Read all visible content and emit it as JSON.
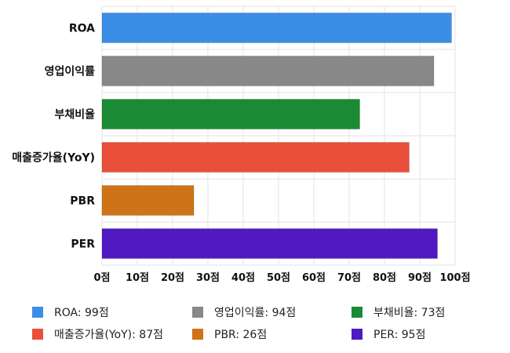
{
  "chart_data": {
    "type": "bar",
    "orientation": "horizontal",
    "categories": [
      "ROA",
      "영업이익률",
      "부채비율",
      "매출증가율(YoY)",
      "PBR",
      "PER"
    ],
    "values": [
      99,
      94,
      73,
      87,
      26,
      95
    ],
    "colors": [
      "#3b8ee6",
      "#888888",
      "#1a8a35",
      "#e94f3a",
      "#cf7318",
      "#5019c2"
    ],
    "xlim": [
      0,
      100
    ],
    "x_ticks": [
      0,
      10,
      20,
      30,
      40,
      50,
      60,
      70,
      80,
      90,
      100
    ],
    "tick_suffix": "점",
    "grid": true,
    "legend_position": "bottom",
    "legend": [
      {
        "label": "ROA: 99점",
        "color": "#3b8ee6"
      },
      {
        "label": "영업이익률: 94점",
        "color": "#888888"
      },
      {
        "label": "부채비율: 73점",
        "color": "#1a8a35"
      },
      {
        "label": "매출증가율(YoY): 87점",
        "color": "#e94f3a"
      },
      {
        "label": "PBR: 26점",
        "color": "#cf7318"
      },
      {
        "label": "PER: 95점",
        "color": "#5019c2"
      }
    ]
  }
}
